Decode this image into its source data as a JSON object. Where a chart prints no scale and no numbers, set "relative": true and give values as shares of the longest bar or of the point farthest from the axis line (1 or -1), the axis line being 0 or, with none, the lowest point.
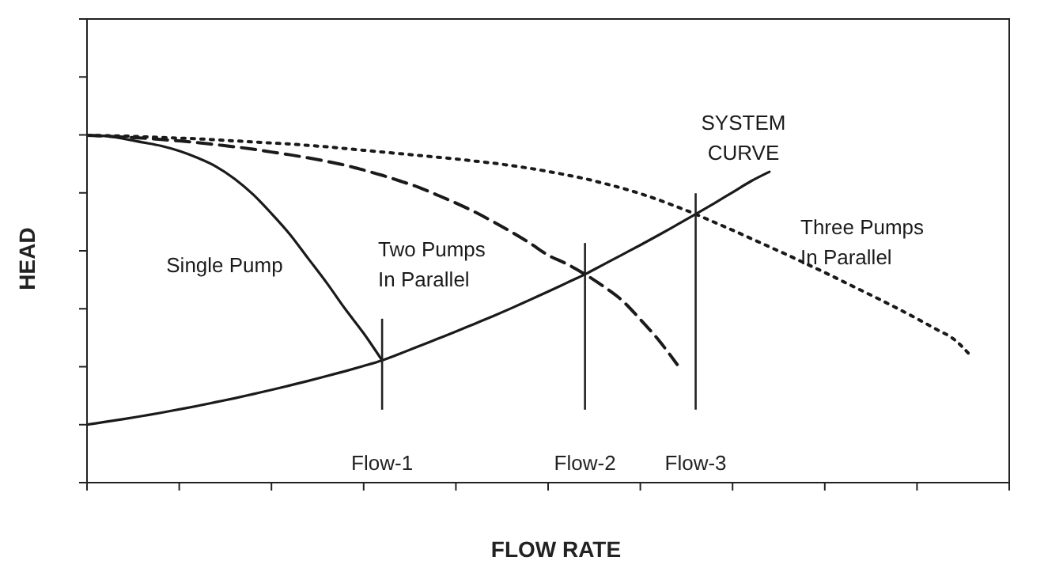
{
  "chart_data": {
    "type": "line",
    "relative": true,
    "xlabel": "FLOW RATE",
    "ylabel": "HEAD",
    "marker": "none",
    "categories": [
      null,
      null,
      null,
      null,
      null,
      null,
      null,
      null,
      null,
      null,
      null,
      null,
      null,
      null,
      null,
      null,
      null,
      null,
      null,
      null,
      null,
      null,
      null,
      null,
      null,
      null,
      null,
      null,
      null,
      null,
      null,
      null,
      null,
      null,
      null,
      null,
      null,
      null,
      null,
      null,
      null,
      null,
      null,
      null,
      null,
      null,
      null,
      null,
      null,
      null,
      null
    ],
    "series": [
      {
        "name": "Single Pump",
        "color": "#1a1a1a",
        "line_style": "solid",
        "values": [
          1,
          0.998,
          0.99,
          0.98,
          0.97,
          0.955,
          0.935,
          0.91,
          0.875,
          0.83,
          0.775,
          0.715,
          0.645,
          0.575,
          0.5,
          0.43,
          0.352,
          null,
          null,
          null,
          null,
          null,
          null,
          null,
          null,
          null,
          null,
          null,
          null,
          null,
          null,
          null,
          null,
          null,
          null,
          null,
          null,
          null,
          null,
          null,
          null,
          null,
          null,
          null,
          null,
          null,
          null,
          null,
          null,
          null,
          null
        ]
      },
      {
        "name": "Two Pumps In Parallel",
        "color": "#1a1a1a",
        "line_style": "dashed",
        "values": [
          1,
          0.998,
          0.995,
          0.992,
          0.988,
          0.984,
          0.979,
          0.973,
          0.967,
          0.96,
          0.952,
          0.944,
          0.935,
          0.925,
          0.914,
          0.9,
          0.885,
          0.868,
          0.85,
          0.828,
          0.805,
          0.78,
          0.752,
          0.722,
          0.69,
          0.655,
          0.63,
          0.6,
          0.565,
          0.525,
          0.47,
          0.41,
          0.34,
          null,
          null,
          null,
          null,
          null,
          null,
          null,
          null,
          null,
          null,
          null,
          null,
          null,
          null,
          null,
          null,
          null,
          null
        ]
      },
      {
        "name": "Three Pumps In Parallel",
        "color": "#1a1a1a",
        "line_style": "dotted",
        "values": [
          1,
          0.999,
          0.998,
          0.996,
          0.994,
          0.992,
          0.99,
          0.987,
          0.984,
          0.981,
          0.978,
          0.975,
          0.971,
          0.967,
          0.962,
          0.957,
          0.952,
          0.947,
          0.942,
          0.937,
          0.932,
          0.926,
          0.92,
          0.913,
          0.905,
          0.896,
          0.886,
          0.875,
          0.862,
          0.848,
          0.832,
          0.814,
          0.794,
          0.773,
          0.75,
          0.727,
          0.703,
          0.679,
          0.655,
          0.63,
          0.605,
          0.579,
          0.553,
          0.527,
          0.5,
          0.472,
          0.443,
          0.413,
          0.36,
          null,
          null
        ]
      },
      {
        "name": "SYSTEM CURVE",
        "color": "#1a1a1a",
        "line_style": "solid",
        "values": [
          0.167,
          0.175,
          0.183,
          0.192,
          0.201,
          0.211,
          0.221,
          0.232,
          0.243,
          0.255,
          0.267,
          0.28,
          0.293,
          0.307,
          0.321,
          0.336,
          0.352,
          0.372,
          0.393,
          0.414,
          0.435,
          0.457,
          0.479,
          0.502,
          0.526,
          0.55,
          0.575,
          0.6,
          0.628,
          0.656,
          0.684,
          0.713,
          0.743,
          0.773,
          0.804,
          0.836,
          0.868,
          0.895,
          null,
          null,
          null,
          null,
          null,
          null,
          null,
          null,
          null,
          null,
          null,
          null,
          null
        ]
      }
    ],
    "annotations": [
      "Flow-1",
      "Flow-2",
      "Flow-3"
    ]
  }
}
